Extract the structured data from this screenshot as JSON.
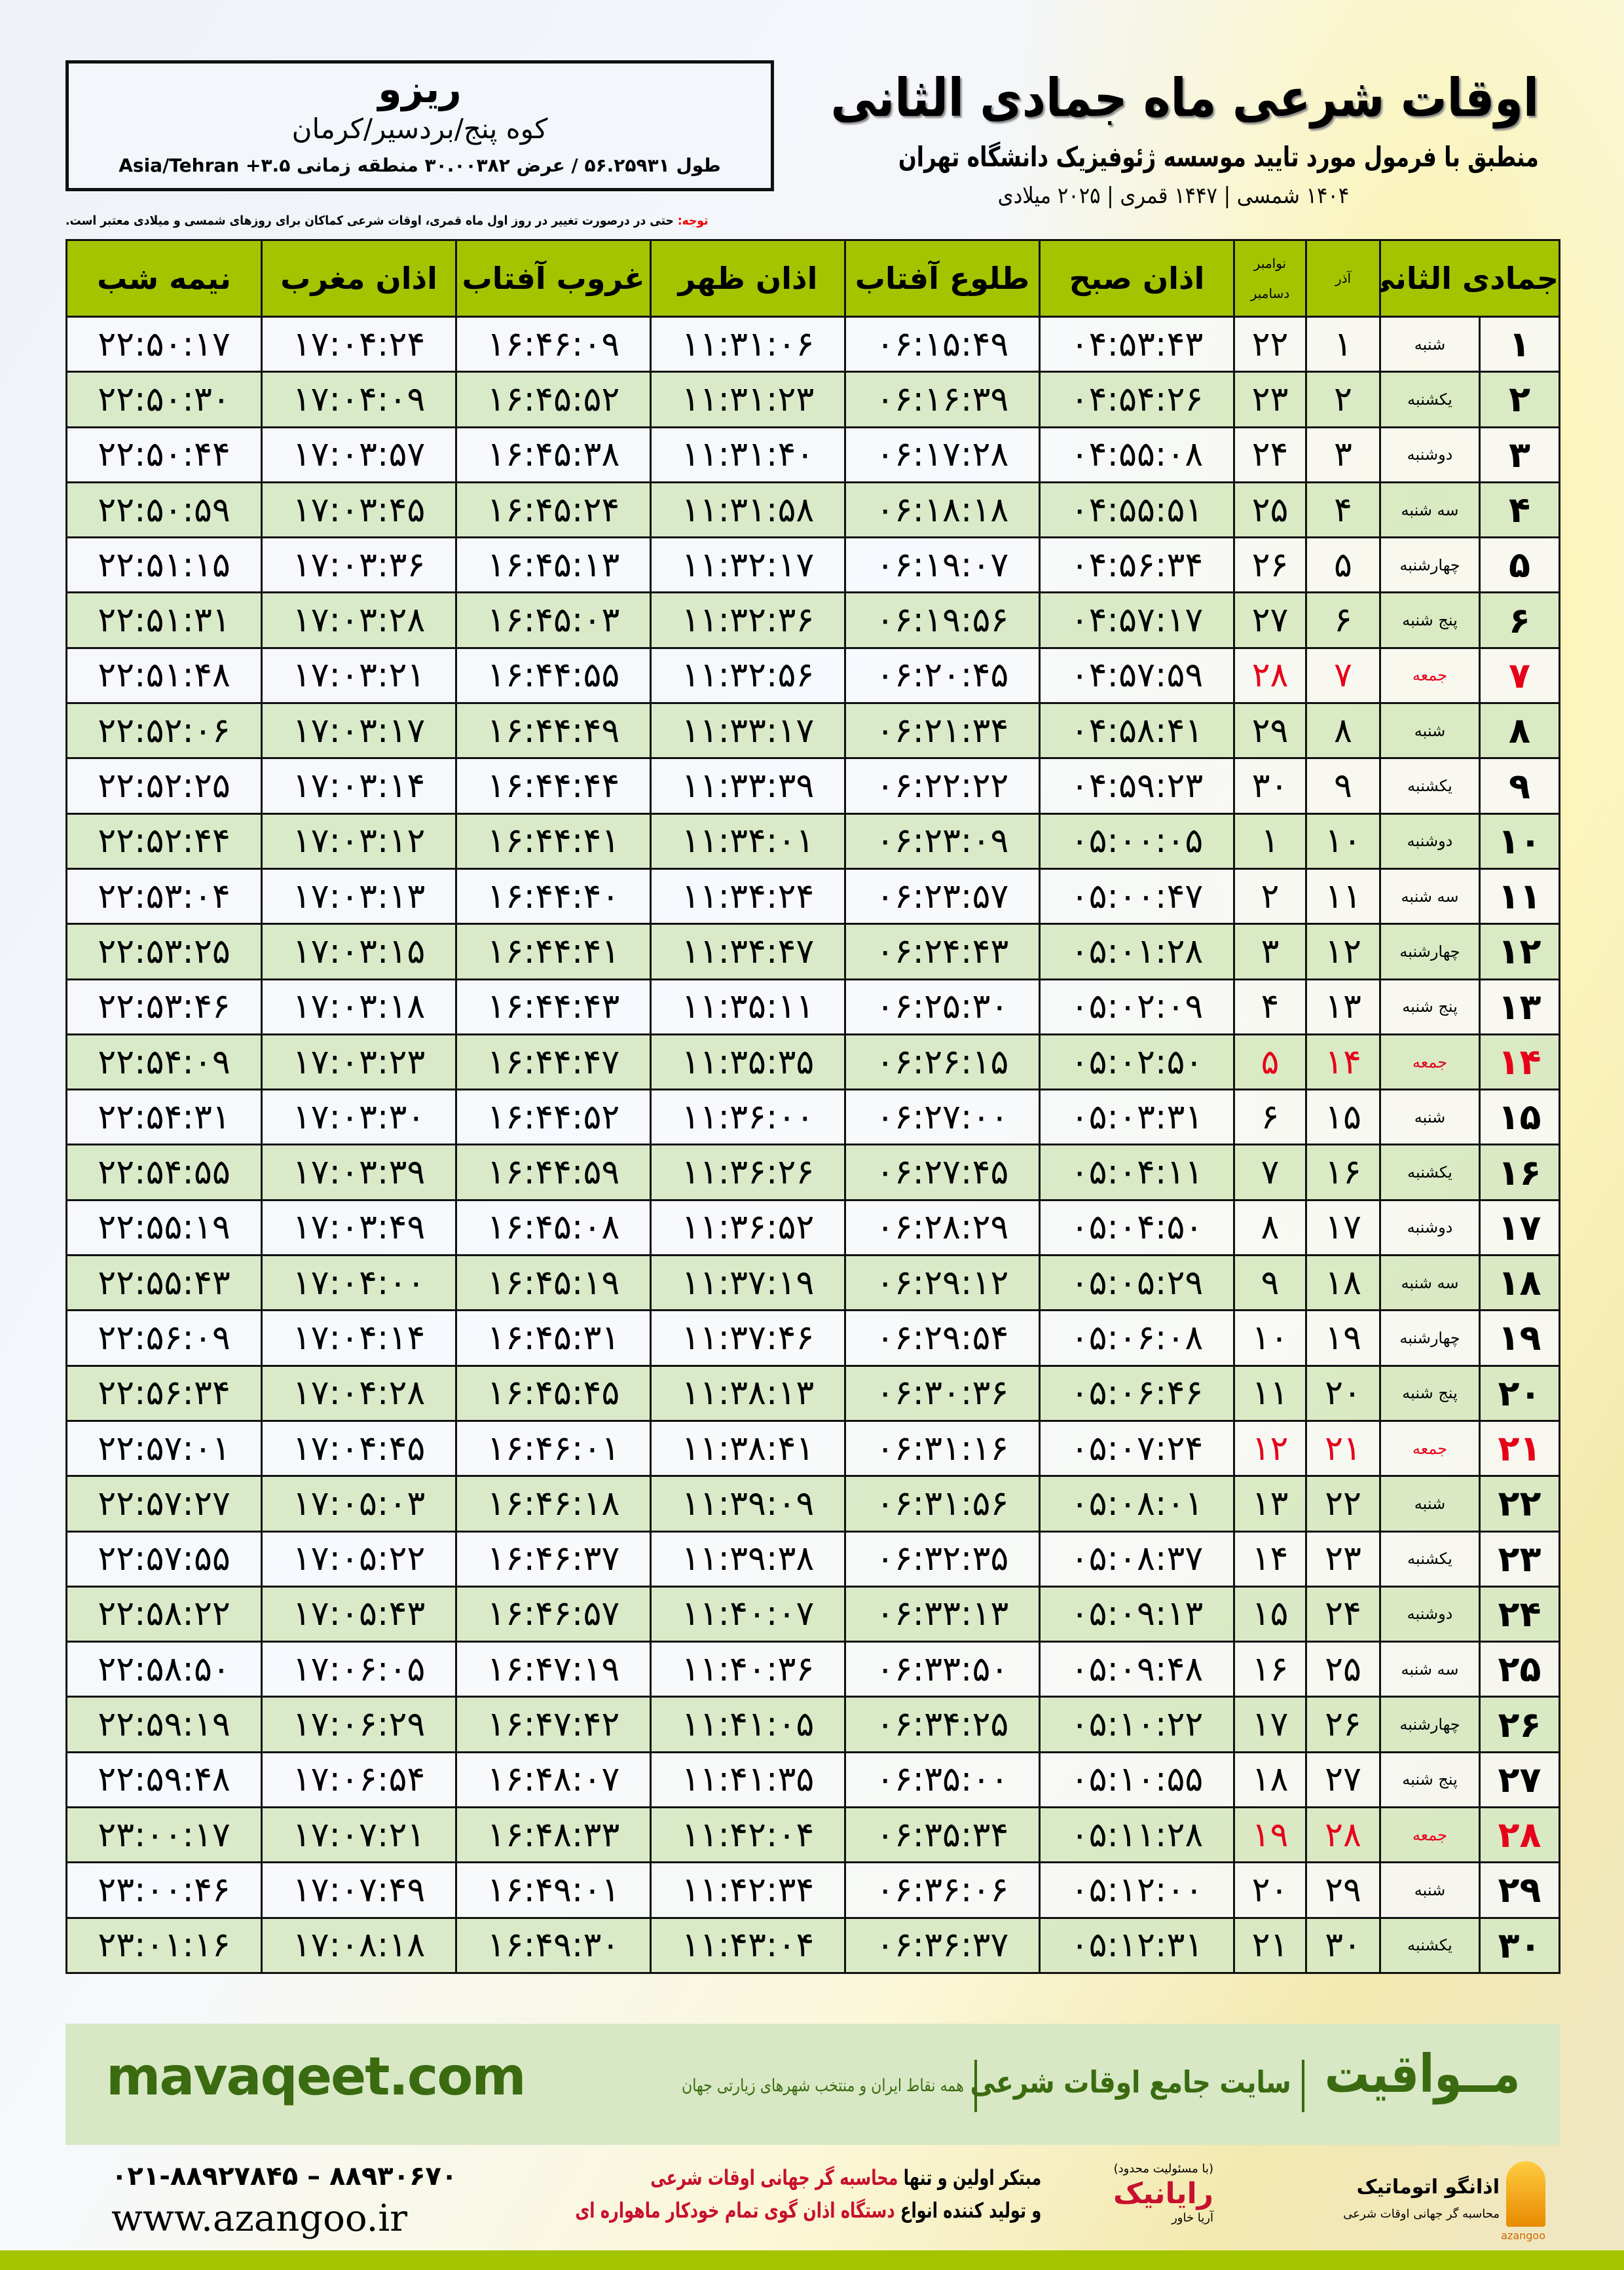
{
  "location": {
    "name": "ریزو",
    "region": "کوه پنج/بردسیر/کرمان",
    "coords": "طول ۵۶.۲۵۹۳۱ / عرض ۳۰.۰۰۳۸۲ منطقه زمانی ۳.۵+ Asia/Tehran"
  },
  "header": {
    "title": "اوقات شرعی ماه جمادی الثانی",
    "subtitle": "منطبق با فرمول مورد تایید موسسه ژئوفیزیک دانشگاه تهران",
    "dates": "۱۴۰۴ شمسی | ۱۴۴۷ قمری | ۲۰۲۵ میلادی"
  },
  "note": {
    "label": "توجه:",
    "text": " حتی در درصورت تغییر در روز اول ماه قمری، اوقات شرعی کماکان برای روزهای شمسی و میلادی معتبر است."
  },
  "table": {
    "columns": [
      "جمادی الثانی",
      "آذر",
      "نوامبر",
      "دسامبر",
      "اذان صبح",
      "طلوع آفتاب",
      "اذان ظهر",
      "غروب آفتاب",
      "اذان مغرب",
      "نیمه شب"
    ],
    "friday_color": "#e6001a",
    "rows": [
      [
        "۱",
        "شنبه",
        "۱",
        "۲۲",
        "۰۴:۵۳:۴۳",
        "۰۶:۱۵:۴۹",
        "۱۱:۳۱:۰۶",
        "۱۶:۴۶:۰۹",
        "۱۷:۰۴:۲۴",
        "۲۲:۵۰:۱۷"
      ],
      [
        "۲",
        "یکشنبه",
        "۲",
        "۲۳",
        "۰۴:۵۴:۲۶",
        "۰۶:۱۶:۳۹",
        "۱۱:۳۱:۲۳",
        "۱۶:۴۵:۵۲",
        "۱۷:۰۴:۰۹",
        "۲۲:۵۰:۳۰"
      ],
      [
        "۳",
        "دوشنبه",
        "۳",
        "۲۴",
        "۰۴:۵۵:۰۸",
        "۰۶:۱۷:۲۸",
        "۱۱:۳۱:۴۰",
        "۱۶:۴۵:۳۸",
        "۱۷:۰۳:۵۷",
        "۲۲:۵۰:۴۴"
      ],
      [
        "۴",
        "سه شنبه",
        "۴",
        "۲۵",
        "۰۴:۵۵:۵۱",
        "۰۶:۱۸:۱۸",
        "۱۱:۳۱:۵۸",
        "۱۶:۴۵:۲۴",
        "۱۷:۰۳:۴۵",
        "۲۲:۵۰:۵۹"
      ],
      [
        "۵",
        "چهارشنبه",
        "۵",
        "۲۶",
        "۰۴:۵۶:۳۴",
        "۰۶:۱۹:۰۷",
        "۱۱:۳۲:۱۷",
        "۱۶:۴۵:۱۳",
        "۱۷:۰۳:۳۶",
        "۲۲:۵۱:۱۵"
      ],
      [
        "۶",
        "پنج شنبه",
        "۶",
        "۲۷",
        "۰۴:۵۷:۱۷",
        "۰۶:۱۹:۵۶",
        "۱۱:۳۲:۳۶",
        "۱۶:۴۵:۰۳",
        "۱۷:۰۳:۲۸",
        "۲۲:۵۱:۳۱"
      ],
      [
        "۷",
        "جمعه",
        "۷",
        "۲۸",
        "۰۴:۵۷:۵۹",
        "۰۶:۲۰:۴۵",
        "۱۱:۳۲:۵۶",
        "۱۶:۴۴:۵۵",
        "۱۷:۰۳:۲۱",
        "۲۲:۵۱:۴۸"
      ],
      [
        "۸",
        "شنبه",
        "۸",
        "۲۹",
        "۰۴:۵۸:۴۱",
        "۰۶:۲۱:۳۴",
        "۱۱:۳۳:۱۷",
        "۱۶:۴۴:۴۹",
        "۱۷:۰۳:۱۷",
        "۲۲:۵۲:۰۶"
      ],
      [
        "۹",
        "یکشنبه",
        "۹",
        "۳۰",
        "۰۴:۵۹:۲۳",
        "۰۶:۲۲:۲۲",
        "۱۱:۳۳:۳۹",
        "۱۶:۴۴:۴۴",
        "۱۷:۰۳:۱۴",
        "۲۲:۵۲:۲۵"
      ],
      [
        "۱۰",
        "دوشنبه",
        "۱۰",
        "۱",
        "۰۵:۰۰:۰۵",
        "۰۶:۲۳:۰۹",
        "۱۱:۳۴:۰۱",
        "۱۶:۴۴:۴۱",
        "۱۷:۰۳:۱۲",
        "۲۲:۵۲:۴۴"
      ],
      [
        "۱۱",
        "سه شنبه",
        "۱۱",
        "۲",
        "۰۵:۰۰:۴۷",
        "۰۶:۲۳:۵۷",
        "۱۱:۳۴:۲۴",
        "۱۶:۴۴:۴۰",
        "۱۷:۰۳:۱۳",
        "۲۲:۵۳:۰۴"
      ],
      [
        "۱۲",
        "چهارشنبه",
        "۱۲",
        "۳",
        "۰۵:۰۱:۲۸",
        "۰۶:۲۴:۴۳",
        "۱۱:۳۴:۴۷",
        "۱۶:۴۴:۴۱",
        "۱۷:۰۳:۱۵",
        "۲۲:۵۳:۲۵"
      ],
      [
        "۱۳",
        "پنج شنبه",
        "۱۳",
        "۴",
        "۰۵:۰۲:۰۹",
        "۰۶:۲۵:۳۰",
        "۱۱:۳۵:۱۱",
        "۱۶:۴۴:۴۳",
        "۱۷:۰۳:۱۸",
        "۲۲:۵۳:۴۶"
      ],
      [
        "۱۴",
        "جمعه",
        "۱۴",
        "۵",
        "۰۵:۰۲:۵۰",
        "۰۶:۲۶:۱۵",
        "۱۱:۳۵:۳۵",
        "۱۶:۴۴:۴۷",
        "۱۷:۰۳:۲۳",
        "۲۲:۵۴:۰۹"
      ],
      [
        "۱۵",
        "شنبه",
        "۱۵",
        "۶",
        "۰۵:۰۳:۳۱",
        "۰۶:۲۷:۰۰",
        "۱۱:۳۶:۰۰",
        "۱۶:۴۴:۵۲",
        "۱۷:۰۳:۳۰",
        "۲۲:۵۴:۳۱"
      ],
      [
        "۱۶",
        "یکشنبه",
        "۱۶",
        "۷",
        "۰۵:۰۴:۱۱",
        "۰۶:۲۷:۴۵",
        "۱۱:۳۶:۲۶",
        "۱۶:۴۴:۵۹",
        "۱۷:۰۳:۳۹",
        "۲۲:۵۴:۵۵"
      ],
      [
        "۱۷",
        "دوشنبه",
        "۱۷",
        "۸",
        "۰۵:۰۴:۵۰",
        "۰۶:۲۸:۲۹",
        "۱۱:۳۶:۵۲",
        "۱۶:۴۵:۰۸",
        "۱۷:۰۳:۴۹",
        "۲۲:۵۵:۱۹"
      ],
      [
        "۱۸",
        "سه شنبه",
        "۱۸",
        "۹",
        "۰۵:۰۵:۲۹",
        "۰۶:۲۹:۱۲",
        "۱۱:۳۷:۱۹",
        "۱۶:۴۵:۱۹",
        "۱۷:۰۴:۰۰",
        "۲۲:۵۵:۴۳"
      ],
      [
        "۱۹",
        "چهارشنبه",
        "۱۹",
        "۱۰",
        "۰۵:۰۶:۰۸",
        "۰۶:۲۹:۵۴",
        "۱۱:۳۷:۴۶",
        "۱۶:۴۵:۳۱",
        "۱۷:۰۴:۱۴",
        "۲۲:۵۶:۰۹"
      ],
      [
        "۲۰",
        "پنج شنبه",
        "۲۰",
        "۱۱",
        "۰۵:۰۶:۴۶",
        "۰۶:۳۰:۳۶",
        "۱۱:۳۸:۱۳",
        "۱۶:۴۵:۴۵",
        "۱۷:۰۴:۲۸",
        "۲۲:۵۶:۳۴"
      ],
      [
        "۲۱",
        "جمعه",
        "۲۱",
        "۱۲",
        "۰۵:۰۷:۲۴",
        "۰۶:۳۱:۱۶",
        "۱۱:۳۸:۴۱",
        "۱۶:۴۶:۰۱",
        "۱۷:۰۴:۴۵",
        "۲۲:۵۷:۰۱"
      ],
      [
        "۲۲",
        "شنبه",
        "۲۲",
        "۱۳",
        "۰۵:۰۸:۰۱",
        "۰۶:۳۱:۵۶",
        "۱۱:۳۹:۰۹",
        "۱۶:۴۶:۱۸",
        "۱۷:۰۵:۰۳",
        "۲۲:۵۷:۲۷"
      ],
      [
        "۲۳",
        "یکشنبه",
        "۲۳",
        "۱۴",
        "۰۵:۰۸:۳۷",
        "۰۶:۳۲:۳۵",
        "۱۱:۳۹:۳۸",
        "۱۶:۴۶:۳۷",
        "۱۷:۰۵:۲۲",
        "۲۲:۵۷:۵۵"
      ],
      [
        "۲۴",
        "دوشنبه",
        "۲۴",
        "۱۵",
        "۰۵:۰۹:۱۳",
        "۰۶:۳۳:۱۳",
        "۱۱:۴۰:۰۷",
        "۱۶:۴۶:۵۷",
        "۱۷:۰۵:۴۳",
        "۲۲:۵۸:۲۲"
      ],
      [
        "۲۵",
        "سه شنبه",
        "۲۵",
        "۱۶",
        "۰۵:۰۹:۴۸",
        "۰۶:۳۳:۵۰",
        "۱۱:۴۰:۳۶",
        "۱۶:۴۷:۱۹",
        "۱۷:۰۶:۰۵",
        "۲۲:۵۸:۵۰"
      ],
      [
        "۲۶",
        "چهارشنبه",
        "۲۶",
        "۱۷",
        "۰۵:۱۰:۲۲",
        "۰۶:۳۴:۲۵",
        "۱۱:۴۱:۰۵",
        "۱۶:۴۷:۴۲",
        "۱۷:۰۶:۲۹",
        "۲۲:۵۹:۱۹"
      ],
      [
        "۲۷",
        "پنج شنبه",
        "۲۷",
        "۱۸",
        "۰۵:۱۰:۵۵",
        "۰۶:۳۵:۰۰",
        "۱۱:۴۱:۳۵",
        "۱۶:۴۸:۰۷",
        "۱۷:۰۶:۵۴",
        "۲۲:۵۹:۴۸"
      ],
      [
        "۲۸",
        "جمعه",
        "۲۸",
        "۱۹",
        "۰۵:۱۱:۲۸",
        "۰۶:۳۵:۳۴",
        "۱۱:۴۲:۰۴",
        "۱۶:۴۸:۳۳",
        "۱۷:۰۷:۲۱",
        "۲۳:۰۰:۱۷"
      ],
      [
        "۲۹",
        "شنبه",
        "۲۹",
        "۲۰",
        "۰۵:۱۲:۰۰",
        "۰۶:۳۶:۰۶",
        "۱۱:۴۲:۳۴",
        "۱۶:۴۹:۰۱",
        "۱۷:۰۷:۴۹",
        "۲۳:۰۰:۴۶"
      ],
      [
        "۳۰",
        "یکشنبه",
        "۳۰",
        "۲۱",
        "۰۵:۱۲:۳۱",
        "۰۶:۳۶:۳۷",
        "۱۱:۴۳:۰۴",
        "۱۶:۴۹:۳۰",
        "۱۷:۰۸:۱۸",
        "۲۳:۰۱:۱۶"
      ]
    ]
  },
  "banner": {
    "brand": "مــواقیت",
    "slogan": "سایت جامع اوقات شرعی",
    "slogan2": "همه نقاط ایران و منتخب شهرهای زیارتی جهان",
    "site": "mavaqeet.com"
  },
  "footer": {
    "phone": "۰۲۱-۸۸۹۲۷۸۴۵ – ۸۸۹۳۰۶۷۰",
    "web": "www.azangoo.ir",
    "promo1a": "مبتکر اولین و تنها ",
    "promo1b": "محاسبه گر جهانی اوقات شرعی",
    "promo2a": "و تولید کننده انواع ",
    "promo2b": "دستگاه اذان گوی تمام خودکار ماهواره ای",
    "raynik_small": "(با مسئولیت محدود)",
    "raynik": "رایانیک",
    "raynik2": "آریا خاور",
    "azangoo": "اذانگو اتوماتیک",
    "azangoo_sub": "محاسبه گر جهانی اوقات شرعی",
    "azangoo_en": "azangoo"
  },
  "colors": {
    "header_green": "#a5c400",
    "row_green": "#d7e8c4",
    "brand_green": "#3a6b10",
    "friday_red": "#e6001a"
  }
}
